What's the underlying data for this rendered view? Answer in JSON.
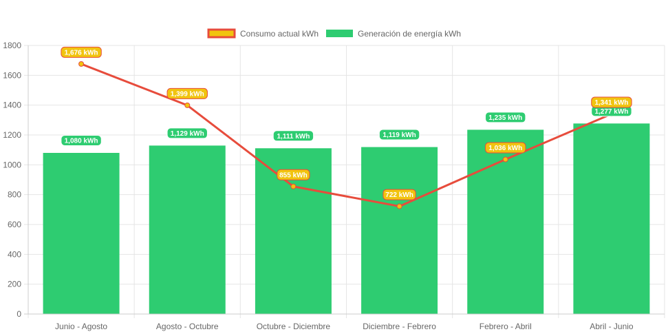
{
  "chart_data": {
    "type": "bar",
    "categories": [
      "Junio - Agosto",
      "Agosto - Octubre",
      "Octubre - Diciembre",
      "Diciembre - Febrero",
      "Febrero - Abril",
      "Abril - Junio"
    ],
    "series": [
      {
        "name": "Consumo actual kWh",
        "type": "line",
        "values": [
          1676,
          1399,
          855,
          722,
          1036,
          1341
        ],
        "labels": [
          "1,676 kWh",
          "1,399 kWh",
          "855 kWh",
          "722 kWh",
          "1,036 kWh",
          "1,341 kWh"
        ],
        "color": "#e74c3c",
        "fill_color": "#f1c40f"
      },
      {
        "name": "Generación de energía kWh",
        "type": "bar",
        "values": [
          1080,
          1129,
          1111,
          1119,
          1235,
          1277
        ],
        "labels": [
          "1,080 kWh",
          "1,129 kWh",
          "1,111 kWh",
          "1,119 kWh",
          "1,235 kWh",
          "1,277 kWh"
        ],
        "color": "#2ecc71"
      }
    ],
    "ylim": [
      0,
      1800
    ],
    "yticks": [
      "0",
      "200",
      "400",
      "600",
      "800",
      "1000",
      "1200",
      "1400",
      "1600",
      "1800"
    ],
    "grid": true,
    "legend_position": "top-center"
  }
}
